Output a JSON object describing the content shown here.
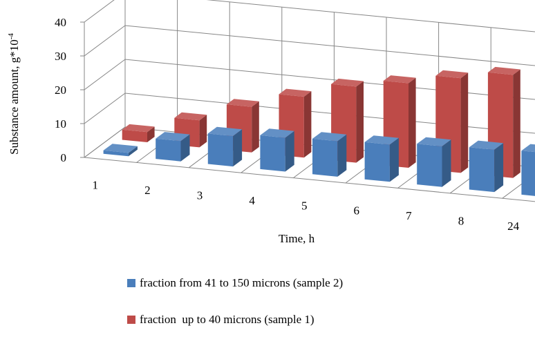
{
  "chart_data": {
    "type": "bar",
    "style": "3d-clustered-rows",
    "categories": [
      "1",
      "2",
      "3",
      "4",
      "5",
      "6",
      "7",
      "8",
      "24"
    ],
    "series": [
      {
        "name": "fraction from 41 to 150 microns (sample 2)",
        "color": "#4a7ebb",
        "values": [
          1,
          6,
          9,
          10,
          10.5,
          11,
          12,
          12.5,
          13
        ]
      },
      {
        "name": "fraction  up to 40 microns (sample 1)",
        "color": "#be4b48",
        "values": [
          3,
          8,
          13.5,
          18,
          22.5,
          25,
          28,
          30.5,
          31.5
        ]
      }
    ],
    "ylabel": "Substance amount, g*10",
    "ylabel_superscript": "-4",
    "xlabel": "Time, h",
    "ylim": [
      0,
      40
    ],
    "yticks": [
      "0",
      "10",
      "20",
      "30",
      "40"
    ],
    "grid": true,
    "legend_position": "bottom"
  }
}
